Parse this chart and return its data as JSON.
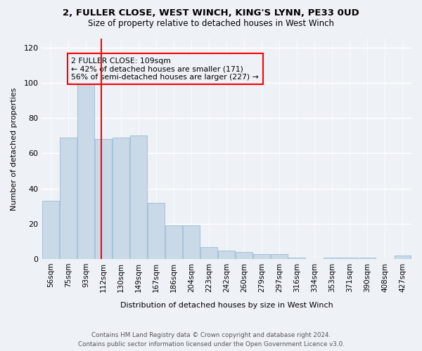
{
  "title": "2, FULLER CLOSE, WEST WINCH, KING'S LYNN, PE33 0UD",
  "subtitle": "Size of property relative to detached houses in West Winch",
  "xlabel": "Distribution of detached houses by size in West Winch",
  "ylabel": "Number of detached properties",
  "bar_values": [
    33,
    69,
    99,
    68,
    69,
    70,
    32,
    19,
    19,
    7,
    5,
    4,
    3,
    3,
    1,
    0,
    1,
    1,
    1,
    0,
    2
  ],
  "bin_labels": [
    "56sqm",
    "75sqm",
    "93sqm",
    "112sqm",
    "130sqm",
    "149sqm",
    "167sqm",
    "186sqm",
    "204sqm",
    "223sqm",
    "242sqm",
    "260sqm",
    "279sqm",
    "297sqm",
    "316sqm",
    "334sqm",
    "353sqm",
    "371sqm",
    "390sqm",
    "408sqm",
    "427sqm"
  ],
  "bar_color": "#c9d9e8",
  "bar_edge_color": "#a8c4d8",
  "annotation_line1": "2 FULLER CLOSE: 109sqm",
  "annotation_line2": "← 42% of detached houses are smaller (171)",
  "annotation_line3": "56% of semi-detached houses are larger (227) →",
  "ylim": [
    0,
    125
  ],
  "yticks": [
    0,
    20,
    40,
    60,
    80,
    100,
    120
  ],
  "red_line_x": 2.88,
  "footnote": "Contains HM Land Registry data © Crown copyright and database right 2024.\nContains public sector information licensed under the Open Government Licence v3.0.",
  "background_color": "#eef2f7",
  "grid_color": "#ffffff"
}
